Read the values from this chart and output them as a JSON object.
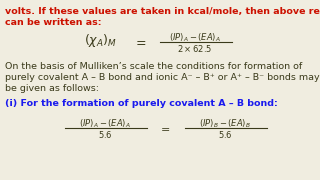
{
  "bg_color": "#f0ede0",
  "red_color": "#cc1100",
  "black_color": "#3a3a1a",
  "blue_color": "#1a1aee",
  "figsize": [
    3.2,
    1.8
  ],
  "dpi": 100,
  "red_line1": "volts. If these values are taken in kcal/mole, then above relation",
  "red_line2": "can be written as:",
  "body_line1": "On the basis of Mulliken’s scale the conditions for formation of",
  "body_line2": "purely covalent A – B bond and ionic A⁻ – B⁺ or A⁺ – B⁻ bonds may",
  "body_line3": "be given as follows:",
  "blue_line": "(i) For the formation of purely covalent A – B bond:"
}
